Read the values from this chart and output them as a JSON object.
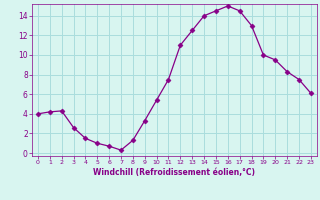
{
  "x": [
    0,
    1,
    2,
    3,
    4,
    5,
    6,
    7,
    8,
    9,
    10,
    11,
    12,
    13,
    14,
    15,
    16,
    17,
    18,
    19,
    20,
    21,
    22,
    23
  ],
  "y": [
    4.0,
    4.2,
    4.3,
    2.6,
    1.5,
    1.0,
    0.7,
    0.3,
    1.3,
    3.3,
    5.4,
    7.5,
    11.0,
    12.5,
    14.0,
    14.5,
    15.0,
    14.5,
    13.0,
    10.0,
    9.5,
    8.3,
    7.5,
    6.1
  ],
  "line_color": "#880088",
  "marker": "D",
  "marker_size": 2.5,
  "bg_color": "#d8f5f0",
  "grid_color": "#aadddd",
  "xlabel": "Windchill (Refroidissement éolien,°C)",
  "xlabel_color": "#880088",
  "tick_color": "#880088",
  "ylim": [
    -0.3,
    15.2
  ],
  "yticks": [
    0,
    2,
    4,
    6,
    8,
    10,
    12,
    14
  ],
  "xlim": [
    -0.5,
    23.5
  ],
  "xticks": [
    0,
    1,
    2,
    3,
    4,
    5,
    6,
    7,
    8,
    9,
    10,
    11,
    12,
    13,
    14,
    15,
    16,
    17,
    18,
    19,
    20,
    21,
    22,
    23
  ],
  "title": ""
}
